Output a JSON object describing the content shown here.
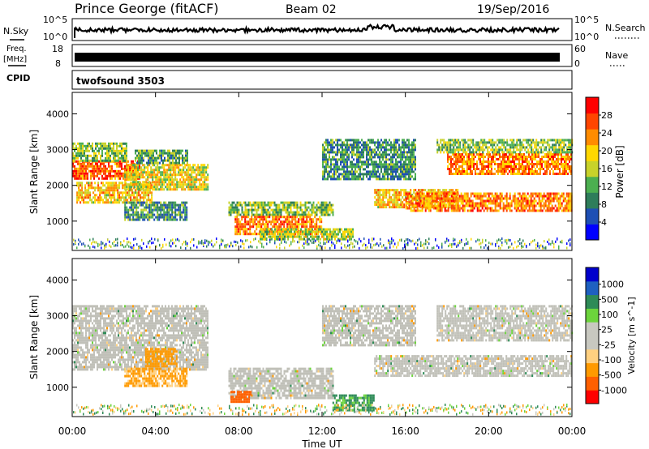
{
  "header": {
    "station": "Prince George (fitACF)",
    "beam": "Beam 02",
    "date": "19/Sep/2016"
  },
  "noise_panel": {
    "left_label": "N.Sky",
    "right_label": "N.Search",
    "left_top": "10^5",
    "left_bottom": "10^0",
    "right_top": "10^5",
    "right_bottom": "10^0"
  },
  "freq_panel": {
    "label_line1": "Freq.",
    "label_line2": "[MHz]",
    "left_top": "18",
    "left_bottom": "8",
    "right_label": "Nave",
    "right_top": "60",
    "right_bottom": "0"
  },
  "cpid_panel": {
    "label": "CPID",
    "mode": "twofsound 3503"
  },
  "axes": {
    "y_label": "Slant Range [km]",
    "x_label": "Time UT",
    "y_ticks": [
      "1000",
      "2000",
      "3000",
      "4000"
    ],
    "x_ticks": [
      "00:00",
      "04:00",
      "08:00",
      "12:00",
      "16:00",
      "20:00",
      "00:00"
    ]
  },
  "colors": {
    "power_scale": [
      "#0000ff",
      "#1e4fb4",
      "#2e7d5a",
      "#4caf50",
      "#c8d22a",
      "#ffd700",
      "#ff8c00",
      "#ff4500",
      "#ff0000"
    ],
    "velocity_scale": [
      "#ff0000",
      "#ff6000",
      "#ff9a00",
      "#ffd080",
      "#c8c8c0",
      "#c8c8c0",
      "#6cd43c",
      "#2e8b57",
      "#1e60c0",
      "#0000cc"
    ],
    "ground_scatter": "#c0c0b8"
  },
  "chart_data": [
    {
      "type": "heatmap",
      "name": "power",
      "x_unit": "hours UT",
      "y_unit": "km",
      "xlim": [
        0,
        24
      ],
      "ylim": [
        180,
        4600
      ],
      "colorbar": {
        "label": "Power [dB]",
        "ticks": [
          "4",
          "8",
          "12",
          "16",
          "20",
          "24",
          "28"
        ],
        "range": [
          0,
          32
        ]
      },
      "regions": [
        {
          "t": [
            0.0,
            3.2
          ],
          "r": [
            2200,
            2700
          ],
          "v": 26
        },
        {
          "t": [
            0.0,
            2.6
          ],
          "r": [
            2700,
            3200
          ],
          "v": 14
        },
        {
          "t": [
            0.2,
            3.8
          ],
          "r": [
            1500,
            2100
          ],
          "v": 20
        },
        {
          "t": [
            2.5,
            6.5
          ],
          "r": [
            1900,
            2600
          ],
          "v": 18
        },
        {
          "t": [
            3.0,
            5.5
          ],
          "r": [
            2600,
            3000
          ],
          "v": 12
        },
        {
          "t": [
            2.5,
            5.5
          ],
          "r": [
            1050,
            1550
          ],
          "v": 10
        },
        {
          "t": [
            7.5,
            12.5
          ],
          "r": [
            1150,
            1550
          ],
          "v": 14
        },
        {
          "t": [
            7.8,
            12.0
          ],
          "r": [
            650,
            1150
          ],
          "v": 24
        },
        {
          "t": [
            9.0,
            13.5
          ],
          "r": [
            500,
            800
          ],
          "v": 16
        },
        {
          "t": [
            12.0,
            16.5
          ],
          "r": [
            2200,
            3300
          ],
          "v": 10
        },
        {
          "t": [
            14.5,
            18.5
          ],
          "r": [
            1400,
            1900
          ],
          "v": 20
        },
        {
          "t": [
            16.0,
            24.0
          ],
          "r": [
            1300,
            1800
          ],
          "v": 24
        },
        {
          "t": [
            18.0,
            24.0
          ],
          "r": [
            2300,
            2900
          ],
          "v": 24
        },
        {
          "t": [
            17.5,
            24.0
          ],
          "r": [
            2900,
            3300
          ],
          "v": 14
        }
      ]
    },
    {
      "type": "heatmap",
      "name": "velocity",
      "x_unit": "hours UT",
      "y_unit": "km",
      "xlim": [
        0,
        24
      ],
      "ylim": [
        180,
        4600
      ],
      "colorbar": {
        "label": "Velocity [m s^-1]",
        "ticks": [
          "1000",
          "500",
          "100",
          "25",
          "-25",
          "-100",
          "-500",
          "-1000"
        ]
      },
      "regions": [
        {
          "t": [
            0.0,
            6.5
          ],
          "r": [
            1500,
            3300
          ],
          "v": 0,
          "ground": true
        },
        {
          "t": [
            2.5,
            5.5
          ],
          "r": [
            1050,
            1550
          ],
          "v": -150
        },
        {
          "t": [
            3.5,
            5.0
          ],
          "r": [
            1600,
            2100
          ],
          "v": -300
        },
        {
          "t": [
            7.5,
            12.5
          ],
          "r": [
            700,
            1550
          ],
          "v": 0,
          "ground": true
        },
        {
          "t": [
            7.6,
            8.6
          ],
          "r": [
            600,
            900
          ],
          "v": -700
        },
        {
          "t": [
            12.5,
            14.5
          ],
          "r": [
            350,
            800
          ],
          "v": 150
        },
        {
          "t": [
            12.0,
            16.5
          ],
          "r": [
            2200,
            3300
          ],
          "v": 0,
          "ground": true
        },
        {
          "t": [
            14.5,
            24.0
          ],
          "r": [
            1300,
            1900
          ],
          "v": 0,
          "ground": true
        },
        {
          "t": [
            17.5,
            24.0
          ],
          "r": [
            2300,
            3300
          ],
          "v": 0,
          "ground": true
        }
      ]
    }
  ]
}
